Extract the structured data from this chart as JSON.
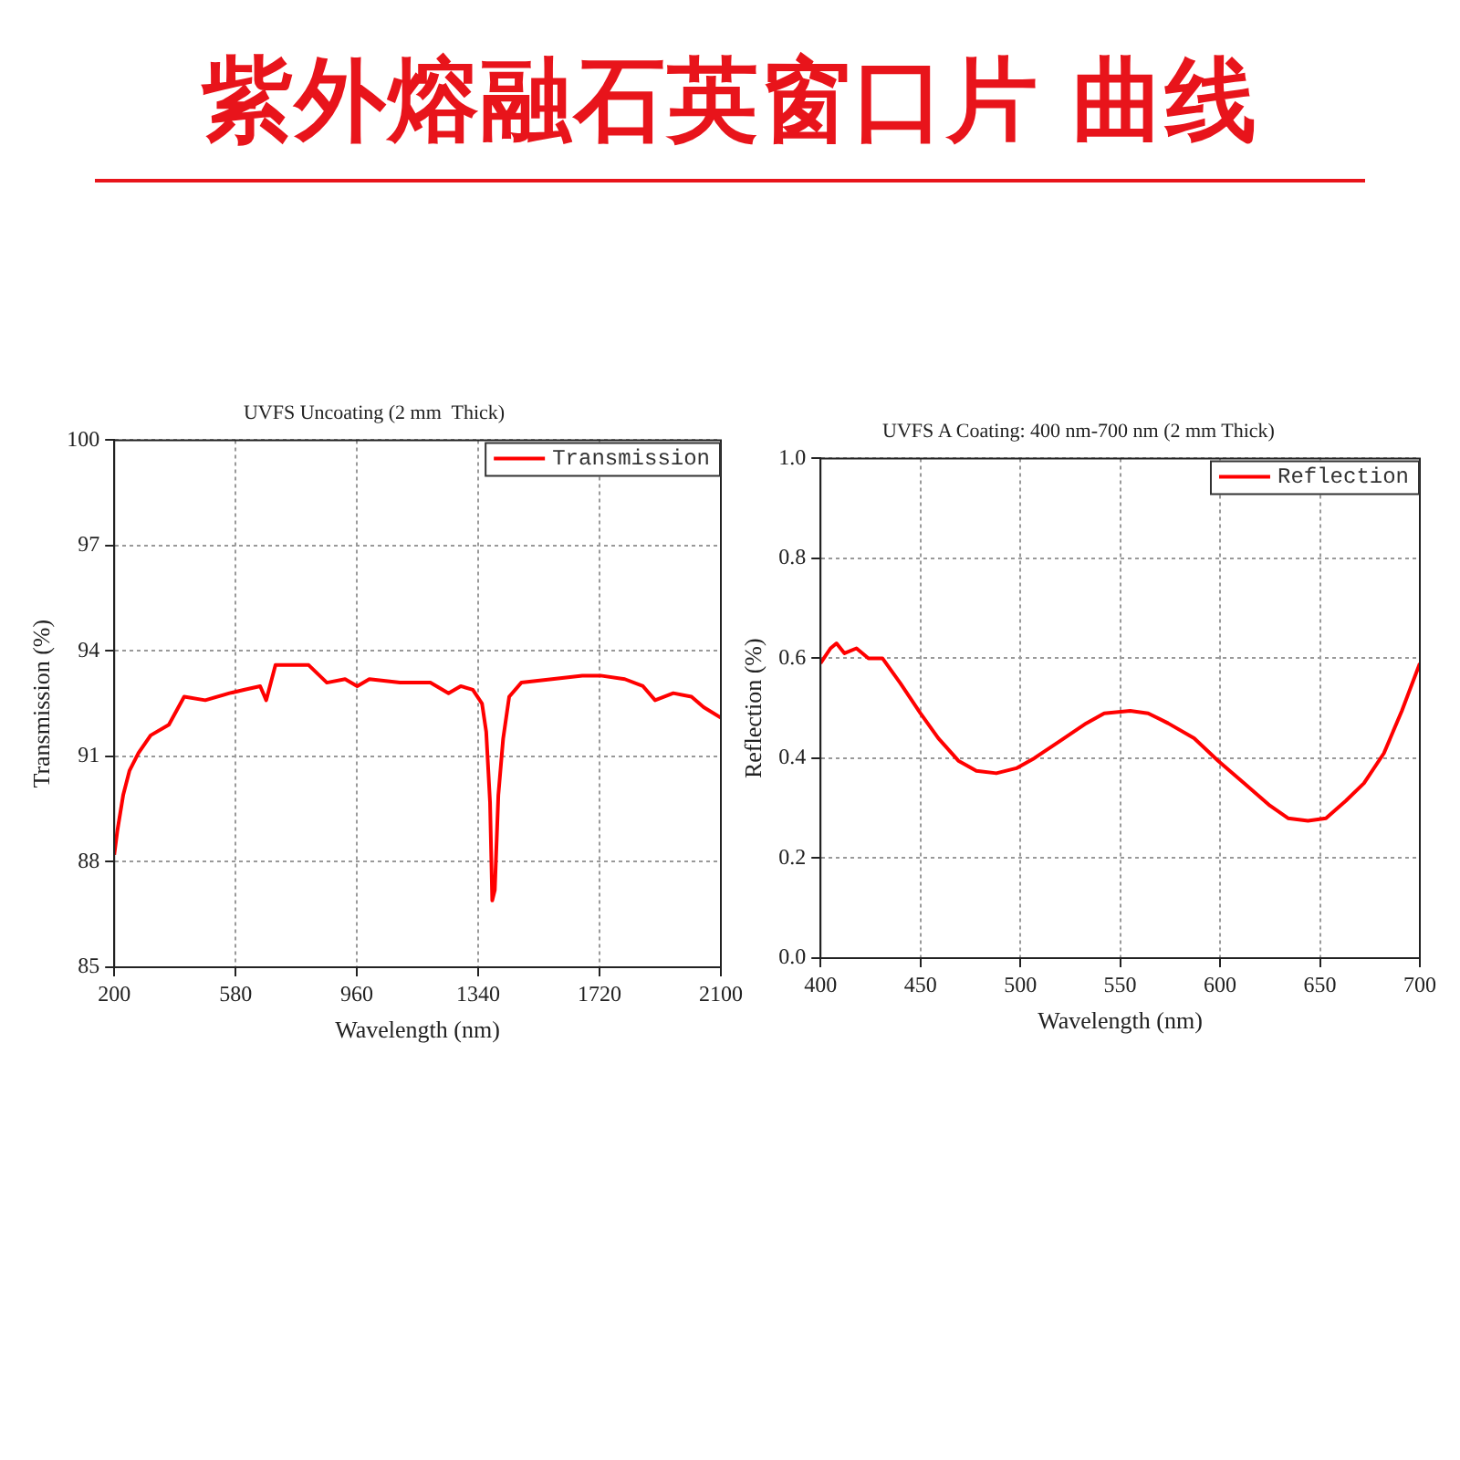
{
  "chart_data": [
    {
      "type": "other",
      "title": "紫外熔融石英窗口片 曲线"
    },
    {
      "type": "line",
      "title": "UVFS Uncoating (2 mm  Thick)",
      "xlabel": "Wavelength (nm)",
      "ylabel": "Transmission (%)",
      "xlim": [
        200,
        2100
      ],
      "xticks": [
        200,
        580,
        960,
        1340,
        1720,
        2100
      ],
      "ylim": [
        85,
        100
      ],
      "yticks": [
        85,
        88,
        91,
        94,
        97,
        100
      ],
      "grid": true,
      "legend": "top right",
      "marker": "none",
      "line_style": "solid",
      "x": [
        200,
        210,
        228,
        248,
        276,
        314,
        371,
        419,
        485,
        561,
        609,
        657,
        676,
        705,
        733,
        809,
        866,
        923,
        961,
        999,
        1095,
        1190,
        1247,
        1285,
        1323,
        1352,
        1365,
        1377,
        1384,
        1392,
        1403,
        1418,
        1437,
        1475,
        1571,
        1666,
        1723,
        1799,
        1856,
        1894,
        1951,
        2008,
        2046,
        2100
      ],
      "series": [
        {
          "name": "Transmission",
          "color": "#ff0000",
          "values": [
            88.2,
            88.9,
            89.9,
            90.6,
            91.1,
            91.6,
            91.9,
            92.7,
            92.6,
            92.8,
            92.9,
            93.0,
            92.6,
            93.6,
            93.6,
            93.6,
            93.1,
            93.2,
            93.0,
            93.2,
            93.1,
            93.1,
            92.8,
            93.0,
            92.9,
            92.5,
            91.7,
            89.7,
            86.9,
            87.2,
            89.9,
            91.5,
            92.7,
            93.1,
            93.2,
            93.3,
            93.3,
            93.2,
            93.0,
            92.6,
            92.8,
            92.7,
            92.4,
            92.1
          ]
        }
      ]
    },
    {
      "type": "line",
      "title": "UVFS A Coating: 400 nm-700 nm (2 mm Thick)",
      "xlabel": "Wavelength (nm)",
      "ylabel": "Reflection (%)",
      "xlim": [
        400,
        700
      ],
      "xticks": [
        400,
        450,
        500,
        550,
        600,
        650,
        700
      ],
      "ylim": [
        0,
        1
      ],
      "yticks": [
        {
          "value": 0,
          "label": "0.0"
        },
        0.2,
        0.4,
        0.6,
        0.8,
        {
          "value": 1,
          "label": "1.0"
        }
      ],
      "grid": true,
      "legend": "top right",
      "marker": "none",
      "line_style": "solid",
      "x": [
        400,
        405,
        408,
        412,
        418,
        424,
        431,
        440,
        450,
        459,
        469,
        478,
        488,
        498,
        507,
        520,
        533,
        542,
        555,
        564,
        574,
        587,
        599,
        612,
        625,
        634,
        644,
        653,
        663,
        672,
        682,
        691,
        700
      ],
      "series": [
        {
          "name": "Reflection",
          "color": "#ff0000",
          "values": [
            0.59,
            0.62,
            0.63,
            0.61,
            0.62,
            0.6,
            0.6,
            0.55,
            0.49,
            0.44,
            0.395,
            0.375,
            0.37,
            0.38,
            0.4,
            0.435,
            0.47,
            0.49,
            0.495,
            0.49,
            0.47,
            0.44,
            0.395,
            0.35,
            0.305,
            0.28,
            0.275,
            0.28,
            0.315,
            0.35,
            0.41,
            0.495,
            0.59
          ]
        }
      ]
    }
  ]
}
